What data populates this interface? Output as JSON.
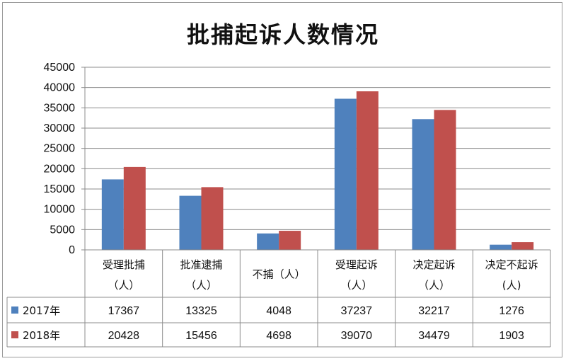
{
  "chart_data": {
    "type": "bar",
    "title": "批捕起诉人数情况",
    "categories": [
      [
        "受理批捕",
        "（人）"
      ],
      [
        "批准逮捕",
        "（人）"
      ],
      [
        "不捕（人）"
      ],
      [
        "受理起诉",
        "（人）"
      ],
      [
        "决定起诉",
        "（人）"
      ],
      [
        "决定不起诉",
        "(人)"
      ]
    ],
    "series": [
      {
        "name": "2017年",
        "color": "#4f81bd",
        "values": [
          17367,
          13325,
          4048,
          37237,
          32217,
          1276
        ]
      },
      {
        "name": "2018年",
        "color": "#c0504d",
        "values": [
          20428,
          15456,
          4698,
          39070,
          34479,
          1903
        ]
      }
    ],
    "ylim": [
      0,
      45000
    ],
    "ytick_step": 5000,
    "grid": true,
    "data_table": true
  }
}
